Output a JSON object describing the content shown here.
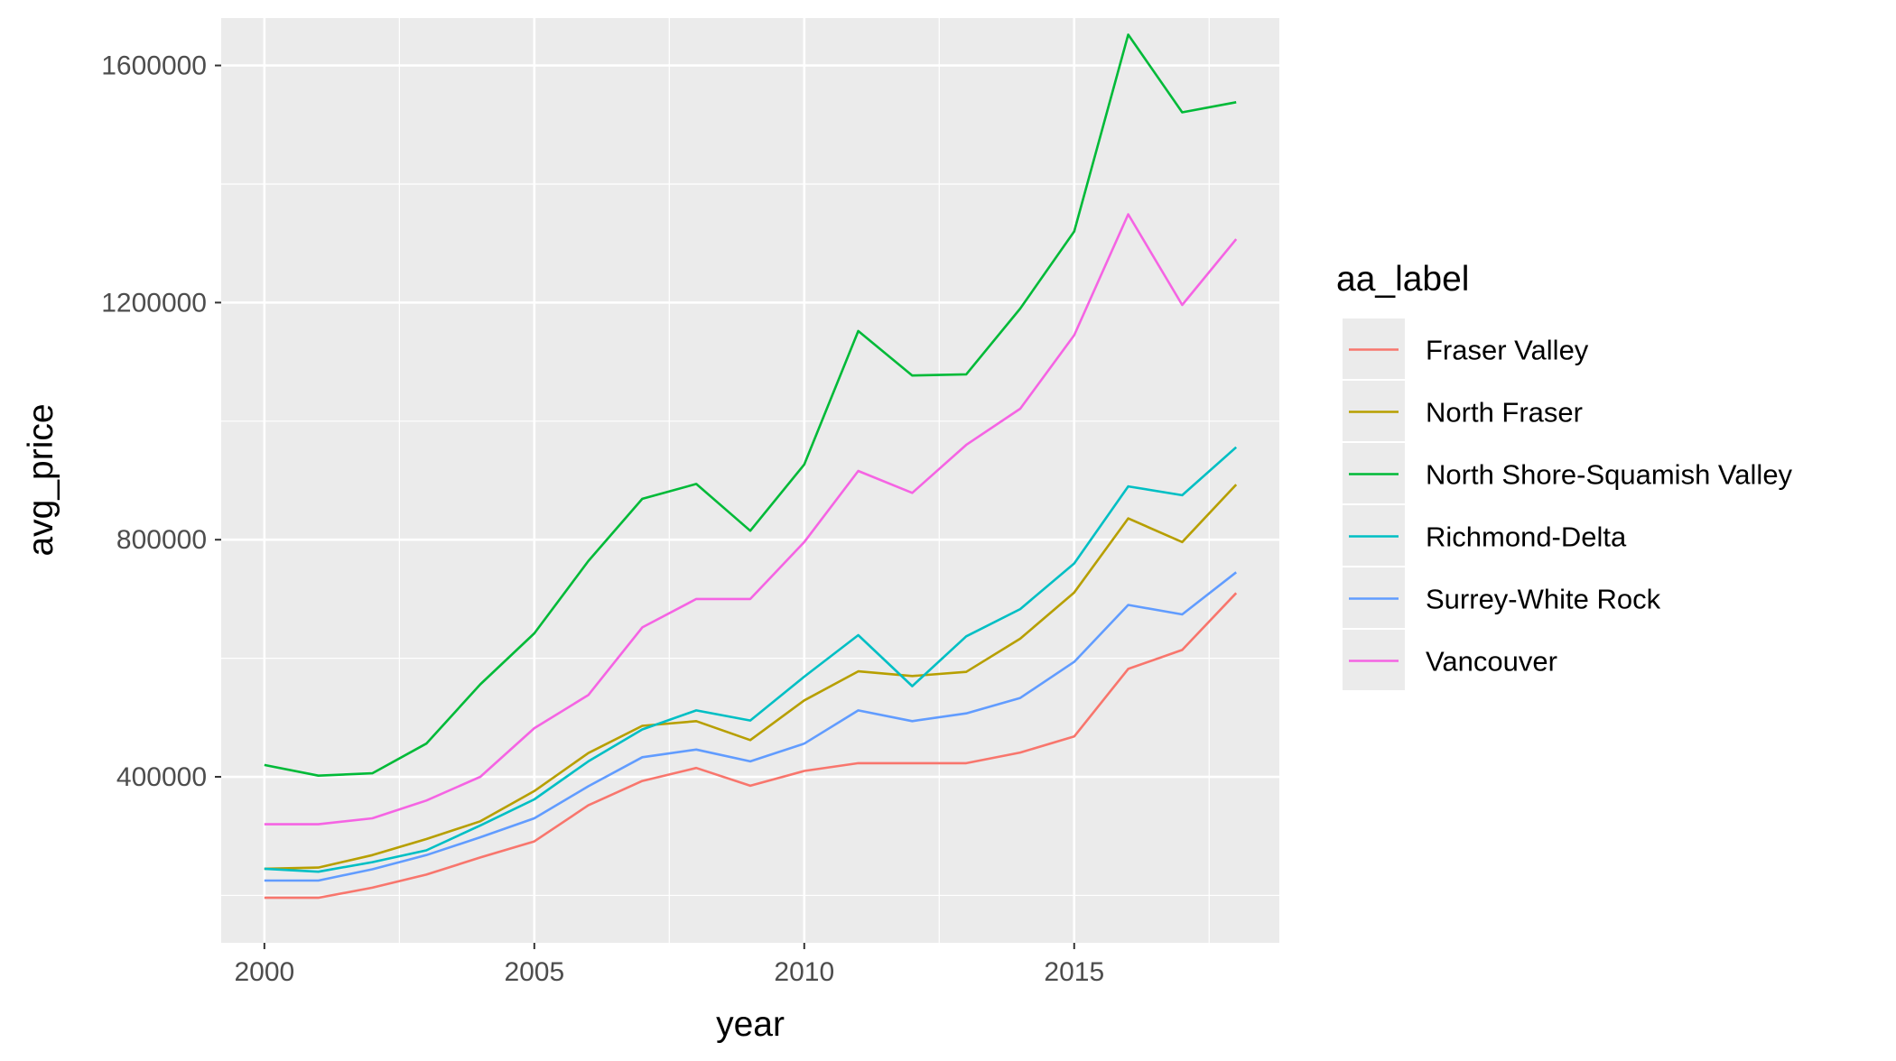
{
  "chart_data": {
    "type": "line",
    "xlabel": "year",
    "ylabel": "avg_price",
    "xlim": [
      1999.2,
      2018.8
    ],
    "ylim": [
      120000,
      1680000
    ],
    "x_ticks": [
      2000,
      2005,
      2010,
      2015
    ],
    "x_tick_labels": [
      "2000",
      "2005",
      "2010",
      "2015"
    ],
    "y_ticks": [
      400000,
      800000,
      1200000,
      1600000
    ],
    "y_tick_labels": [
      "400000",
      "800000",
      "1200000",
      "1600000"
    ],
    "grid": true,
    "panel_background": "#ebebeb",
    "legend": {
      "title": "aa_label",
      "position": "right"
    },
    "x": [
      2000,
      2001,
      2002,
      2003,
      2004,
      2005,
      2006,
      2007,
      2008,
      2009,
      2010,
      2011,
      2012,
      2013,
      2014,
      2015,
      2016,
      2017,
      2018
    ],
    "series": [
      {
        "name": "Fraser Valley",
        "color": "#F8766D",
        "values": [
          196000,
          196000,
          213000,
          235000,
          264000,
          291000,
          352000,
          393000,
          415000,
          385000,
          410000,
          423000,
          423000,
          423000,
          441000,
          468000,
          582000,
          614000,
          710000
        ]
      },
      {
        "name": "North Fraser",
        "color": "#B79F00",
        "values": [
          245000,
          247000,
          268000,
          295000,
          325000,
          376000,
          440000,
          486000,
          494000,
          462000,
          529000,
          578000,
          570000,
          577000,
          633000,
          711000,
          836000,
          796000,
          893000
        ]
      },
      {
        "name": "North Shore-Squamish Valley",
        "color": "#00BA38",
        "values": [
          420000,
          402000,
          406000,
          456000,
          556000,
          642000,
          764000,
          869000,
          894000,
          815000,
          927000,
          1152000,
          1077000,
          1079000,
          1190000,
          1320000,
          1652000,
          1521000,
          1538000
        ]
      },
      {
        "name": "Richmond-Delta",
        "color": "#00BFC4",
        "values": [
          245000,
          240000,
          256000,
          276000,
          318000,
          362000,
          426000,
          480000,
          512000,
          495000,
          569000,
          639000,
          553000,
          637000,
          683000,
          760000,
          890000,
          875000,
          956000
        ]
      },
      {
        "name": "Surrey-White Rock",
        "color": "#619CFF",
        "values": [
          225000,
          225000,
          244000,
          268000,
          298000,
          330000,
          384000,
          433000,
          446000,
          426000,
          456000,
          512000,
          494000,
          507000,
          533000,
          594000,
          690000,
          674000,
          745000
        ]
      },
      {
        "name": "Vancouver",
        "color": "#F564E3",
        "values": [
          320000,
          320000,
          330000,
          360000,
          400000,
          482000,
          538000,
          652000,
          700000,
          700000,
          796000,
          916000,
          879000,
          960000,
          1021000,
          1145000,
          1349000,
          1196000,
          1307000
        ]
      }
    ]
  }
}
